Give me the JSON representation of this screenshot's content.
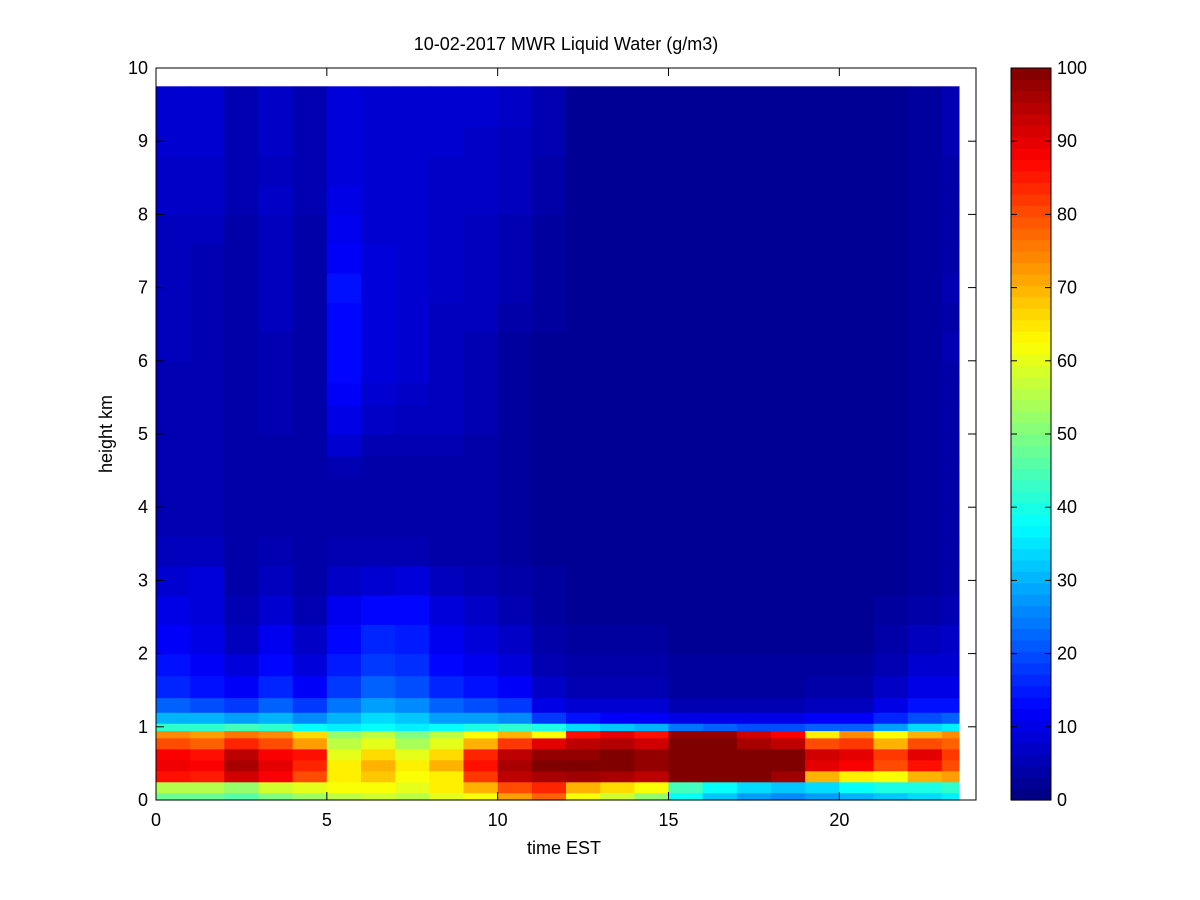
{
  "chart_data": {
    "type": "heatmap",
    "title": "10-02-2017 MWR Liquid Water (g/m3)",
    "xlabel": "time EST",
    "ylabel": "height km",
    "xlim": [
      0,
      24
    ],
    "ylim": [
      0,
      10
    ],
    "x_ticks": [
      0,
      5,
      10,
      15,
      20
    ],
    "y_ticks": [
      0,
      1,
      2,
      3,
      4,
      5,
      6,
      7,
      8,
      9,
      10
    ],
    "colorbar": {
      "colormap": "jet",
      "range": [
        0,
        100
      ],
      "ticks": [
        0,
        10,
        20,
        30,
        40,
        50,
        60,
        70,
        80,
        90,
        100
      ]
    },
    "x_edges": [
      0,
      1,
      2,
      3,
      4,
      5,
      6,
      7,
      8,
      9,
      10,
      11,
      12,
      13,
      14,
      15,
      16,
      17,
      18,
      19,
      20,
      21,
      22,
      23,
      23.5
    ],
    "rows": [
      {
        "y0": 0.0,
        "y1": 0.1,
        "values": [
          48,
          48,
          46,
          50,
          53,
          56,
          58,
          56,
          60,
          62,
          72,
          78,
          62,
          58,
          52,
          38,
          32,
          28,
          26,
          28,
          30,
          32,
          34,
          36
        ]
      },
      {
        "y0": 0.1,
        "y1": 0.25,
        "values": [
          55,
          55,
          52,
          58,
          60,
          62,
          62,
          60,
          64,
          70,
          80,
          84,
          70,
          66,
          62,
          44,
          38,
          34,
          32,
          34,
          38,
          40,
          40,
          42
        ]
      },
      {
        "y0": 0.25,
        "y1": 0.4,
        "values": [
          86,
          85,
          92,
          88,
          80,
          64,
          68,
          62,
          64,
          82,
          94,
          96,
          97,
          96,
          94,
          100,
          100,
          100,
          97,
          70,
          64,
          62,
          70,
          72
        ]
      },
      {
        "y0": 0.4,
        "y1": 0.55,
        "values": [
          89,
          88,
          96,
          90,
          84,
          64,
          70,
          64,
          70,
          86,
          96,
          100,
          100,
          100,
          98,
          100,
          100,
          100,
          100,
          90,
          88,
          80,
          86,
          80
        ]
      },
      {
        "y0": 0.55,
        "y1": 0.7,
        "values": [
          88,
          86,
          94,
          88,
          86,
          60,
          66,
          60,
          66,
          84,
          94,
          98,
          98,
          100,
          98,
          100,
          100,
          100,
          100,
          92,
          90,
          82,
          90,
          82
        ]
      },
      {
        "y0": 0.7,
        "y1": 0.85,
        "values": [
          80,
          78,
          84,
          80,
          72,
          56,
          60,
          54,
          60,
          70,
          82,
          90,
          94,
          95,
          92,
          100,
          100,
          96,
          94,
          80,
          82,
          70,
          80,
          78
        ]
      },
      {
        "y0": 0.85,
        "y1": 0.95,
        "values": [
          74,
          72,
          76,
          74,
          66,
          52,
          56,
          50,
          56,
          62,
          70,
          62,
          86,
          90,
          86,
          98,
          98,
          92,
          88,
          64,
          74,
          62,
          70,
          74
        ]
      },
      {
        "y0": 0.95,
        "y1": 1.05,
        "values": [
          42,
          42,
          44,
          42,
          38,
          36,
          38,
          36,
          38,
          40,
          42,
          40,
          34,
          32,
          30,
          24,
          22,
          20,
          20,
          22,
          22,
          28,
          34,
          36
        ]
      },
      {
        "y0": 1.05,
        "y1": 1.2,
        "values": [
          30,
          30,
          28,
          30,
          26,
          30,
          34,
          32,
          28,
          28,
          26,
          18,
          14,
          12,
          12,
          10,
          10,
          10,
          10,
          12,
          12,
          16,
          20,
          22
        ]
      },
      {
        "y0": 1.2,
        "y1": 1.4,
        "values": [
          22,
          20,
          18,
          22,
          18,
          24,
          28,
          26,
          22,
          20,
          18,
          10,
          8,
          8,
          8,
          5,
          5,
          5,
          5,
          6,
          6,
          10,
          14,
          14
        ]
      },
      {
        "y0": 1.4,
        "y1": 1.7,
        "values": [
          16,
          14,
          12,
          16,
          12,
          18,
          22,
          20,
          16,
          14,
          12,
          7,
          5,
          5,
          5,
          3,
          3,
          3,
          3,
          4,
          4,
          7,
          10,
          10
        ]
      },
      {
        "y0": 1.7,
        "y1": 2.0,
        "values": [
          14,
          12,
          9,
          13,
          9,
          15,
          18,
          17,
          13,
          11,
          9,
          5,
          4,
          4,
          4,
          3,
          3,
          3,
          3,
          3,
          3,
          5,
          8,
          8
        ]
      },
      {
        "y0": 2.0,
        "y1": 2.4,
        "values": [
          12,
          10,
          6,
          11,
          7,
          13,
          16,
          15,
          11,
          9,
          7,
          4,
          3,
          3,
          3,
          2,
          2,
          2,
          2,
          2,
          2,
          4,
          6,
          7
        ]
      },
      {
        "y0": 2.4,
        "y1": 2.8,
        "values": [
          10,
          9,
          5,
          8,
          5,
          11,
          13,
          13,
          9,
          7,
          5,
          3,
          2,
          2,
          2,
          2,
          2,
          2,
          2,
          2,
          2,
          3,
          4,
          5
        ]
      },
      {
        "y0": 2.8,
        "y1": 3.2,
        "values": [
          8,
          9,
          4,
          6,
          4,
          7,
          8,
          9,
          6,
          5,
          4,
          3,
          2,
          2,
          2,
          2,
          2,
          2,
          2,
          2,
          2,
          2,
          3,
          4
        ]
      },
      {
        "y0": 3.2,
        "y1": 3.6,
        "values": [
          6,
          6,
          4,
          5,
          4,
          5,
          5,
          5,
          4,
          4,
          3,
          2,
          2,
          2,
          2,
          2,
          2,
          2,
          2,
          2,
          2,
          2,
          3,
          4
        ]
      },
      {
        "y0": 3.6,
        "y1": 4.0,
        "values": [
          5,
          5,
          4,
          4,
          4,
          4,
          4,
          4,
          4,
          4,
          3,
          2,
          2,
          2,
          2,
          2,
          2,
          2,
          2,
          2,
          2,
          2,
          3,
          4
        ]
      },
      {
        "y0": 4.0,
        "y1": 4.4,
        "values": [
          5,
          5,
          4,
          4,
          4,
          4,
          4,
          4,
          4,
          4,
          3,
          2,
          2,
          2,
          2,
          2,
          2,
          2,
          2,
          2,
          2,
          2,
          3,
          4
        ]
      },
      {
        "y0": 4.4,
        "y1": 4.7,
        "values": [
          5,
          5,
          4,
          4,
          4,
          5,
          4,
          4,
          4,
          4,
          3,
          2,
          2,
          2,
          2,
          2,
          2,
          2,
          2,
          2,
          2,
          2,
          3,
          4
        ]
      },
      {
        "y0": 4.7,
        "y1": 5.0,
        "values": [
          5,
          5,
          4,
          4,
          4,
          8,
          5,
          5,
          5,
          4,
          3,
          2,
          2,
          2,
          2,
          2,
          2,
          2,
          2,
          2,
          2,
          2,
          3,
          4
        ]
      },
      {
        "y0": 5.0,
        "y1": 5.4,
        "values": [
          5,
          5,
          4,
          5,
          4,
          10,
          7,
          6,
          6,
          5,
          3,
          2,
          2,
          2,
          2,
          2,
          2,
          2,
          2,
          2,
          2,
          2,
          3,
          4
        ]
      },
      {
        "y0": 5.4,
        "y1": 5.7,
        "values": [
          5,
          5,
          4,
          5,
          4,
          12,
          8,
          7,
          6,
          5,
          3,
          2,
          2,
          2,
          2,
          2,
          2,
          2,
          2,
          2,
          2,
          2,
          3,
          4
        ]
      },
      {
        "y0": 5.7,
        "y1": 6.0,
        "values": [
          5,
          5,
          4,
          5,
          4,
          13,
          9,
          8,
          6,
          5,
          3,
          2,
          2,
          2,
          2,
          2,
          2,
          2,
          2,
          2,
          2,
          2,
          3,
          4
        ]
      },
      {
        "y0": 6.0,
        "y1": 6.4,
        "values": [
          6,
          5,
          4,
          5,
          4,
          13,
          9,
          8,
          6,
          5,
          3,
          2,
          2,
          2,
          2,
          2,
          2,
          2,
          2,
          2,
          2,
          2,
          3,
          5
        ]
      },
      {
        "y0": 6.4,
        "y1": 6.8,
        "values": [
          6,
          5,
          4,
          6,
          4,
          13,
          9,
          8,
          6,
          6,
          4,
          3,
          2,
          2,
          2,
          2,
          2,
          2,
          2,
          2,
          2,
          2,
          3,
          4
        ]
      },
      {
        "y0": 6.8,
        "y1": 7.2,
        "values": [
          6,
          5,
          4,
          6,
          4,
          14,
          9,
          8,
          7,
          6,
          5,
          3,
          2,
          2,
          2,
          2,
          2,
          2,
          2,
          2,
          2,
          2,
          3,
          5
        ]
      },
      {
        "y0": 7.2,
        "y1": 7.6,
        "values": [
          6,
          5,
          4,
          6,
          4,
          12,
          9,
          8,
          7,
          6,
          5,
          3,
          2,
          2,
          2,
          2,
          2,
          2,
          2,
          2,
          2,
          2,
          3,
          4
        ]
      },
      {
        "y0": 7.6,
        "y1": 8.0,
        "values": [
          6,
          6,
          4,
          6,
          4,
          11,
          8,
          8,
          7,
          6,
          5,
          3,
          2,
          2,
          2,
          2,
          2,
          2,
          2,
          2,
          2,
          2,
          3,
          4
        ]
      },
      {
        "y0": 8.0,
        "y1": 8.4,
        "values": [
          7,
          7,
          5,
          7,
          5,
          10,
          8,
          8,
          7,
          7,
          6,
          4,
          2,
          2,
          2,
          2,
          2,
          2,
          2,
          2,
          2,
          2,
          3,
          4
        ]
      },
      {
        "y0": 8.4,
        "y1": 8.8,
        "values": [
          7,
          7,
          5,
          6,
          5,
          9,
          8,
          8,
          7,
          7,
          6,
          4,
          2,
          2,
          2,
          2,
          2,
          2,
          2,
          2,
          2,
          2,
          3,
          4
        ]
      },
      {
        "y0": 8.8,
        "y1": 9.2,
        "values": [
          8,
          8,
          5,
          7,
          5,
          9,
          8,
          8,
          8,
          7,
          6,
          5,
          2,
          2,
          2,
          2,
          2,
          2,
          2,
          2,
          2,
          2,
          3,
          5
        ]
      },
      {
        "y0": 9.2,
        "y1": 9.75,
        "values": [
          8,
          8,
          5,
          7,
          5,
          9,
          8,
          8,
          8,
          8,
          7,
          5,
          2,
          2,
          2,
          2,
          2,
          2,
          2,
          2,
          2,
          2,
          3,
          5
        ]
      }
    ]
  }
}
